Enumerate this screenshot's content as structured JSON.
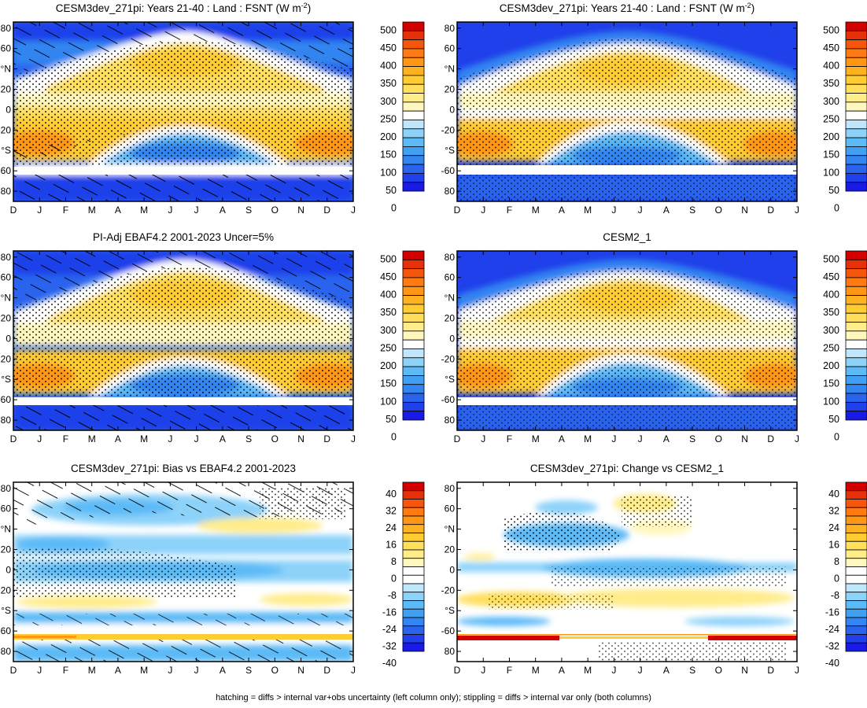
{
  "months": [
    "D",
    "J",
    "F",
    "M",
    "A",
    "M",
    "J",
    "J",
    "A",
    "S",
    "O",
    "N",
    "D",
    "J"
  ],
  "lat_ticks": [
    "80",
    "60",
    "°N",
    "20",
    "0",
    "-20",
    "°S",
    "-60",
    "80"
  ],
  "footer": "hatching = diffs > internal var+obs uncertainty (left column only); stippling = diffs > internal var only (both columns)",
  "colors": {
    "abs_scale": [
      "#1a1ae6",
      "#1f40ea",
      "#2a64ee",
      "#3385f1",
      "#3fa0f4",
      "#5cbaf7",
      "#8cd2f9",
      "#c0e6fc",
      "#ffffff",
      "#fff7bd",
      "#ffec8a",
      "#ffdf5c",
      "#ffcc33",
      "#ffb21f",
      "#ff9614",
      "#ff7a10",
      "#f5560c",
      "#e63008",
      "#d40000"
    ],
    "diff_scale": [
      "#1a1ae6",
      "#1f40ea",
      "#2a64ee",
      "#3385f1",
      "#3fa0f4",
      "#5cbaf7",
      "#8cd2f9",
      "#c0e6fc",
      "#ffffff",
      "#ffffff",
      "#fff7bd",
      "#ffec8a",
      "#ffdf5c",
      "#ffcc33",
      "#ffb21f",
      "#ff9614",
      "#ff7a10",
      "#f5560c",
      "#e63008",
      "#d40000"
    ]
  },
  "chart_data": [
    {
      "type": "heatmap",
      "title": "CESM3dev_271pi: Years 21-40 : Land : FSNT (W m-2)",
      "title_main": "CESM3dev_271pi: Years 21-40 : Land : FSNT (W m",
      "title_sup": "-2",
      "title_tail": ")",
      "x": [
        "D",
        "J",
        "F",
        "M",
        "A",
        "M",
        "J",
        "J",
        "A",
        "S",
        "O",
        "N",
        "D",
        "J"
      ],
      "colorbar_ticks": [
        "500",
        "450",
        "400",
        "350",
        "300",
        "250",
        "200",
        "150",
        "100",
        "50",
        "0"
      ],
      "hatching": true,
      "stippling": true
    },
    {
      "type": "heatmap",
      "title": "CESM3dev_271pi: Years 21-40 : Land : FSNT (W m-2)",
      "title_main": "CESM3dev_271pi: Years 21-40 : Land : FSNT (W m",
      "title_sup": "-2",
      "title_tail": ")",
      "x": [
        "D",
        "J",
        "F",
        "M",
        "A",
        "M",
        "J",
        "J",
        "A",
        "S",
        "O",
        "N",
        "D",
        "J"
      ],
      "colorbar_ticks": [
        "500",
        "450",
        "400",
        "350",
        "300",
        "250",
        "200",
        "150",
        "100",
        "50",
        "0"
      ],
      "hatching": false,
      "stippling": true
    },
    {
      "type": "heatmap",
      "title": "PI-Adj EBAF4.2 2001-2023 Uncer=5%",
      "x": [
        "D",
        "J",
        "F",
        "M",
        "A",
        "M",
        "J",
        "J",
        "A",
        "S",
        "O",
        "N",
        "D",
        "J"
      ],
      "colorbar_ticks": [
        "500",
        "450",
        "400",
        "350",
        "300",
        "250",
        "200",
        "150",
        "100",
        "50",
        "0"
      ],
      "hatching": true,
      "stippling": true
    },
    {
      "type": "heatmap",
      "title": "CESM2_1",
      "x": [
        "D",
        "J",
        "F",
        "M",
        "A",
        "M",
        "J",
        "J",
        "A",
        "S",
        "O",
        "N",
        "D",
        "J"
      ],
      "colorbar_ticks": [
        "500",
        "450",
        "400",
        "350",
        "300",
        "250",
        "200",
        "150",
        "100",
        "50",
        "0"
      ],
      "hatching": false,
      "stippling": true
    },
    {
      "type": "heatmap",
      "title": "CESM3dev_271pi: Bias vs EBAF4.2 2001-2023",
      "x": [
        "D",
        "J",
        "F",
        "M",
        "A",
        "M",
        "J",
        "J",
        "A",
        "S",
        "O",
        "N",
        "D",
        "J"
      ],
      "colorbar_ticks": [
        "40",
        "32",
        "24",
        "16",
        "8",
        "0",
        "-8",
        "-16",
        "-24",
        "-32",
        "-40"
      ],
      "hatching": true,
      "stippling": true
    },
    {
      "type": "heatmap",
      "title": "CESM3dev_271pi: Change vs CESM2_1",
      "x": [
        "D",
        "J",
        "F",
        "M",
        "A",
        "M",
        "J",
        "J",
        "A",
        "S",
        "O",
        "N",
        "D",
        "J"
      ],
      "colorbar_ticks": [
        "40",
        "32",
        "24",
        "16",
        "8",
        "0",
        "-8",
        "-16",
        "-24",
        "-32",
        "-40"
      ],
      "hatching": false,
      "stippling": true
    }
  ]
}
